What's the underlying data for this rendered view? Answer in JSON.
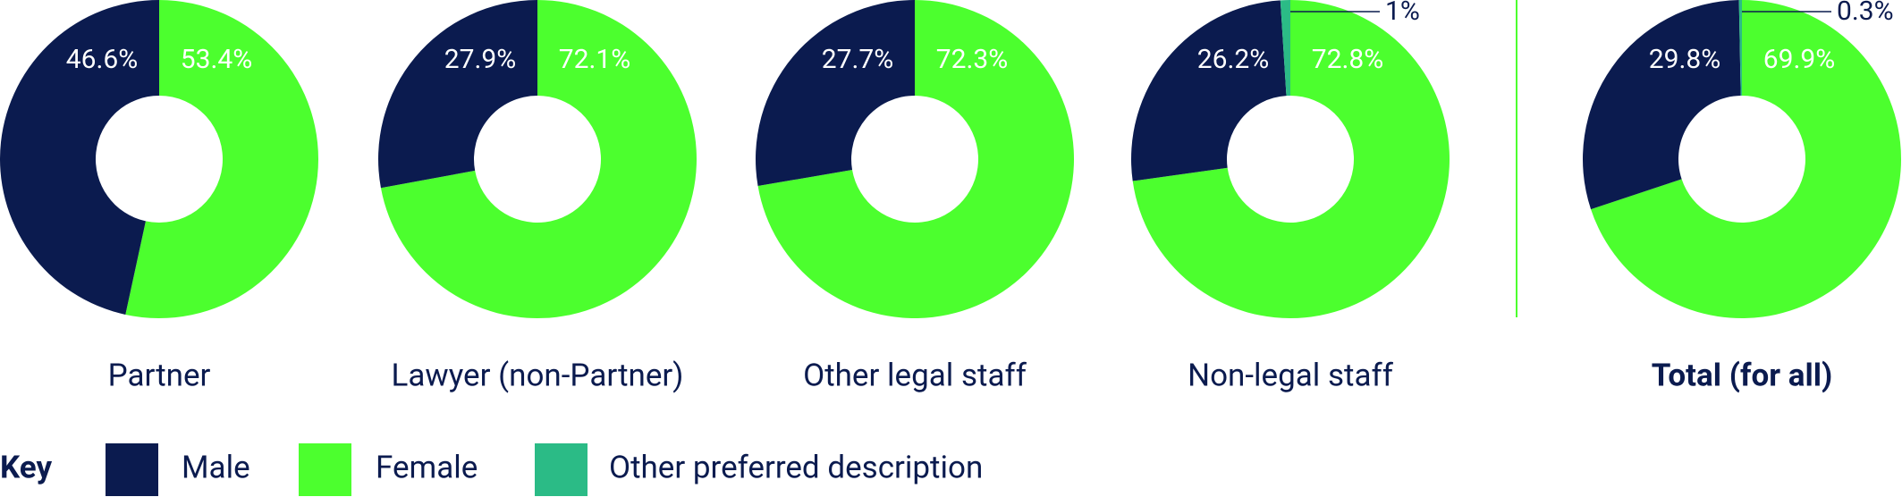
{
  "legend": {
    "title": "Key",
    "items": [
      {
        "name": "Male",
        "color": "#0b1b4f"
      },
      {
        "name": "Female",
        "color": "#4cff2e"
      },
      {
        "name": "Other preferred description",
        "color": "#2bbb86"
      }
    ]
  },
  "chart_data": [
    {
      "type": "pie",
      "title": "Partner",
      "values": [
        46.6,
        53.4
      ],
      "value_labels": [
        "46.6%",
        "53.4%"
      ]
    },
    {
      "type": "pie",
      "title": "Lawyer (non-Partner)",
      "values": [
        27.9,
        72.1
      ],
      "value_labels": [
        "27.9%",
        "72.1%"
      ]
    },
    {
      "type": "pie",
      "title": "Other legal staff",
      "values": [
        27.7,
        72.3
      ],
      "value_labels": [
        "27.7%",
        "72.3%"
      ]
    },
    {
      "type": "pie",
      "title": "Non-legal staff",
      "values": [
        26.2,
        72.8,
        1
      ],
      "value_labels": [
        "26.2%",
        "72.8%",
        "1%"
      ]
    },
    {
      "type": "pie",
      "title": "Total (for all)",
      "title_bold": true,
      "values": [
        29.8,
        69.9,
        0.3
      ],
      "value_labels": [
        "29.8%",
        "69.9%",
        "0.3%"
      ]
    }
  ]
}
